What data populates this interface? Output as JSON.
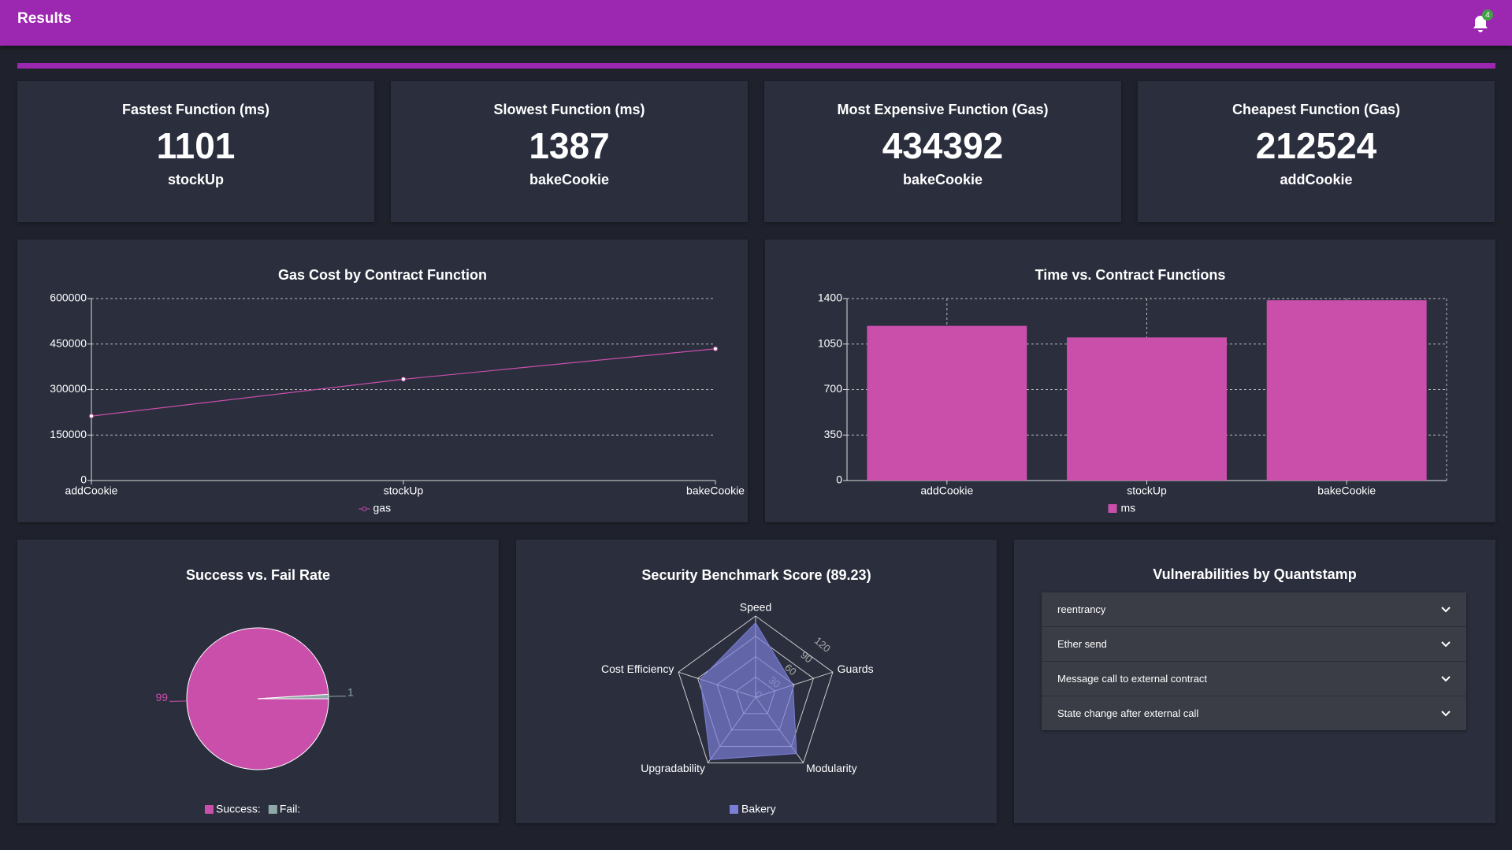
{
  "header": {
    "title": "Results",
    "badge": "4"
  },
  "cards": [
    {
      "title": "Fastest Function (ms)",
      "value": 1101,
      "label": "stockUp"
    },
    {
      "title": "Slowest Function (ms)",
      "value": 1387,
      "label": "bakeCookie"
    },
    {
      "title": "Most Expensive Function (Gas)",
      "value": 434392,
      "label": "bakeCookie"
    },
    {
      "title": "Cheapest Function (Gas)",
      "value": 212524,
      "label": "addCookie"
    }
  ],
  "chart_data": [
    {
      "type": "line",
      "title": "Gas Cost by Contract Function",
      "categories": [
        "addCookie",
        "stockUp",
        "bakeCookie"
      ],
      "series": [
        {
          "name": "gas",
          "color": "#c94fab",
          "values": [
            212524,
            334000,
            434392
          ]
        }
      ],
      "ylim": [
        0,
        600000
      ],
      "yticks": [
        0,
        150000,
        300000,
        450000,
        600000
      ],
      "grid": true
    },
    {
      "type": "bar",
      "title": "Time vs. Contract Functions",
      "categories": [
        "addCookie",
        "stockUp",
        "bakeCookie"
      ],
      "series": [
        {
          "name": "ms",
          "color": "#c94fab",
          "values": [
            1190,
            1101,
            1387
          ]
        }
      ],
      "ylim": [
        0,
        1400
      ],
      "yticks": [
        0,
        350,
        700,
        1050,
        1400
      ],
      "grid": true
    },
    {
      "type": "pie",
      "title": "Success vs. Fail Rate",
      "categories": [
        "Success:",
        "Fail:"
      ],
      "values": [
        99,
        1
      ],
      "colors": [
        "#c94fab",
        "#8fa9a9"
      ]
    },
    {
      "type": "radar",
      "title": "Security Benchmark Score (89.23)",
      "categories": [
        "Speed",
        "Guards",
        "Modularity",
        "Upgradability",
        "Cost Efficiency"
      ],
      "series": [
        {
          "name": "Bakery",
          "color": "#7b7fd6",
          "values": [
            110,
            58,
            103,
            114,
            86
          ]
        }
      ],
      "rlim": [
        0,
        120
      ],
      "rticks": [
        0,
        30,
        60,
        90,
        120
      ]
    }
  ],
  "vulnerabilities": {
    "title": "Vulnerabilities by Quantstamp",
    "items": [
      "reentrancy",
      "Ether send",
      "Message call to external contract",
      "State change after external call"
    ]
  }
}
